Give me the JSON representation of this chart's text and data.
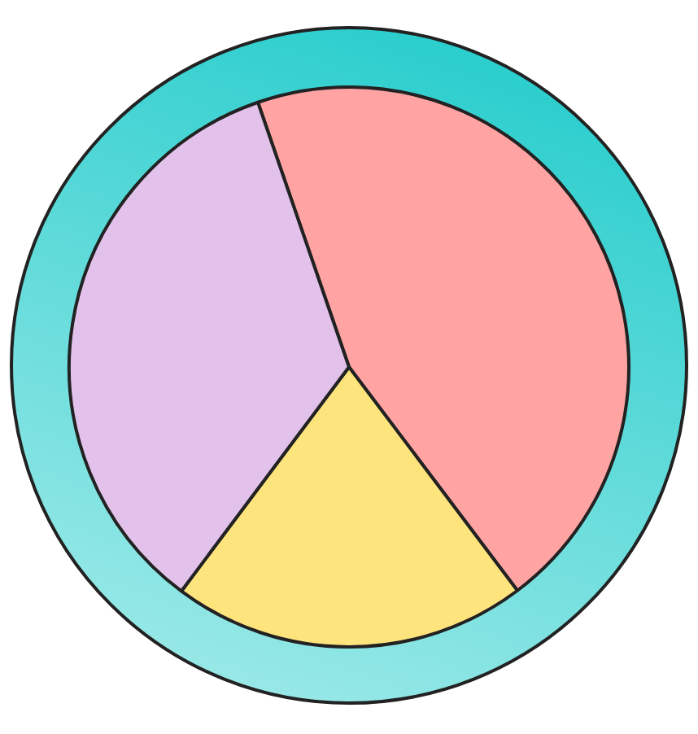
{
  "chart_data": {
    "type": "pie",
    "categories": [
      null,
      null,
      null
    ],
    "values": [
      45,
      20.5,
      34.5
    ],
    "colors": [
      "#ffa3a3",
      "#fee47c",
      "#e2c2ea"
    ]
  }
}
